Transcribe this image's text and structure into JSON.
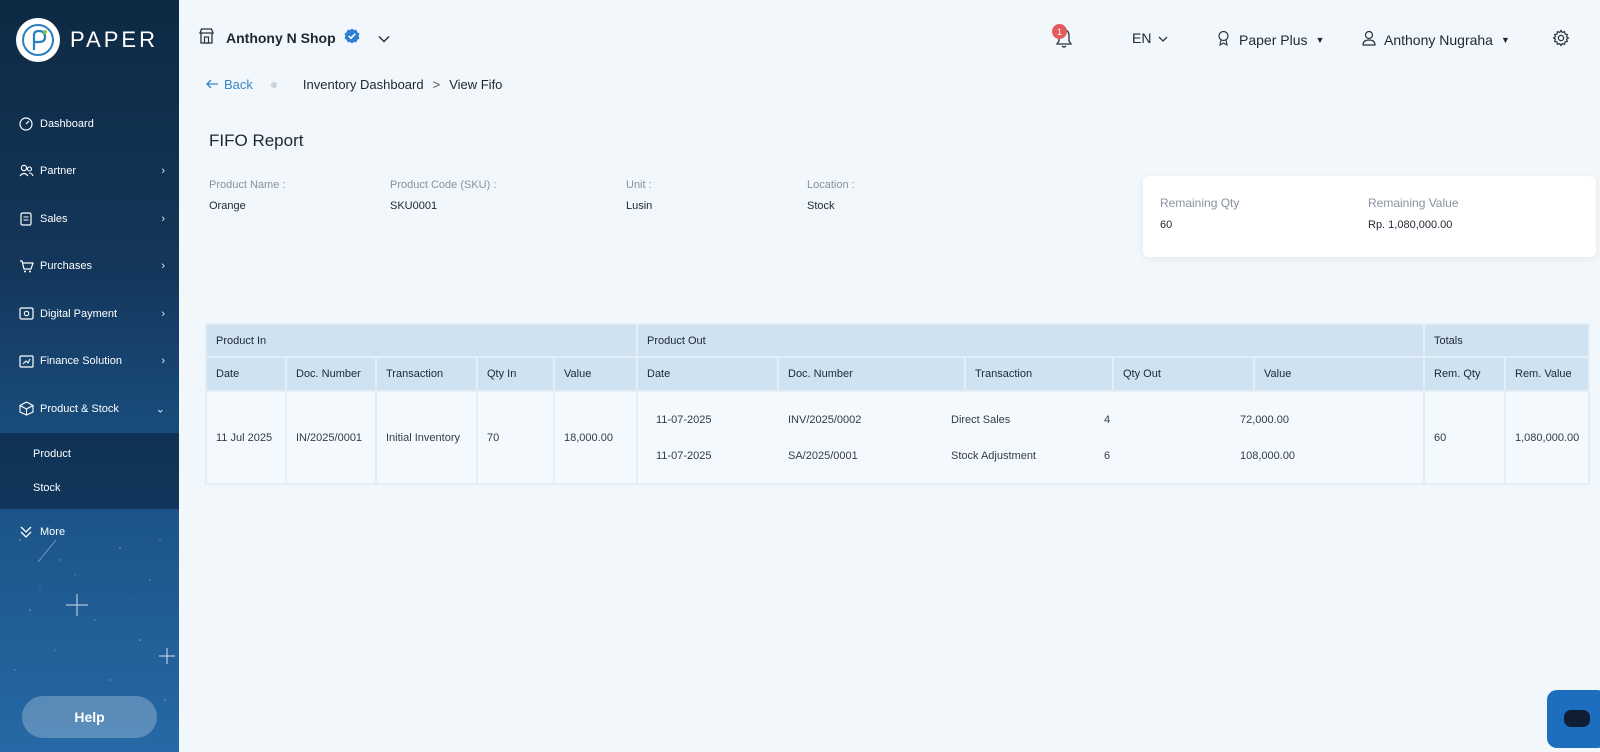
{
  "app": {
    "logo_text": "PAPER"
  },
  "sidebar": {
    "items": [
      {
        "label": "Dashboard",
        "icon": "dashboard-icon"
      },
      {
        "label": "Partner",
        "icon": "partner-icon"
      },
      {
        "label": "Sales",
        "icon": "sales-icon"
      },
      {
        "label": "Purchases",
        "icon": "cart-icon"
      },
      {
        "label": "Digital Payment",
        "icon": "payment-icon"
      },
      {
        "label": "Finance Solution",
        "icon": "finance-icon"
      },
      {
        "label": "Product & Stock",
        "icon": "box-icon"
      }
    ],
    "subitems": [
      {
        "label": "Product"
      },
      {
        "label": "Stock"
      }
    ],
    "more": {
      "label": "More",
      "icon": "more-icon"
    },
    "help_label": "Help"
  },
  "topbar": {
    "shop_name": "Anthony N Shop",
    "notif_count": "1",
    "language": "EN",
    "plan": "Paper Plus",
    "user_name": "Anthony Nugraha"
  },
  "breadcrumb": {
    "back": "Back",
    "items": [
      "Inventory Dashboard",
      "View Fifo"
    ],
    "separator": ">"
  },
  "page_title": "FIFO Report",
  "product_info": {
    "name_label": "Product Name :",
    "name": "Orange",
    "code_label": "Product Code (SKU) :",
    "code": "SKU0001",
    "unit_label": "Unit :",
    "unit": "Lusin",
    "location_label": "Location :",
    "location": "Stock"
  },
  "remaining": {
    "qty_label": "Remaining Qty",
    "qty": "60",
    "value_label": "Remaining Value",
    "value": "Rp. 1,080,000.00"
  },
  "table": {
    "groups": [
      "Product In",
      "Product Out",
      "Totals"
    ],
    "headers_in": [
      "Date",
      "Doc. Number",
      "Transaction",
      "Qty In",
      "Value"
    ],
    "headers_out": [
      "Date",
      "Doc. Number",
      "Transaction",
      "Qty Out",
      "Value"
    ],
    "headers_totals": [
      "Rem. Qty",
      "Rem. Value"
    ],
    "row": {
      "in": [
        "11 Jul 2025",
        "IN/2025/0001",
        "Initial Inventory",
        "70",
        "18,000.00"
      ],
      "out": [
        [
          "11-07-2025",
          "INV/2025/0002",
          "Direct Sales",
          "4",
          "72,000.00"
        ],
        [
          "11-07-2025",
          "SA/2025/0001",
          "Stock Adjustment",
          "6",
          "108,000.00"
        ]
      ],
      "totals": [
        "60",
        "1,080,000.00"
      ]
    }
  },
  "colors": {
    "accent": "#3a86c8",
    "header_bg": "#cfe2f2",
    "badge": "#e45a5a"
  }
}
